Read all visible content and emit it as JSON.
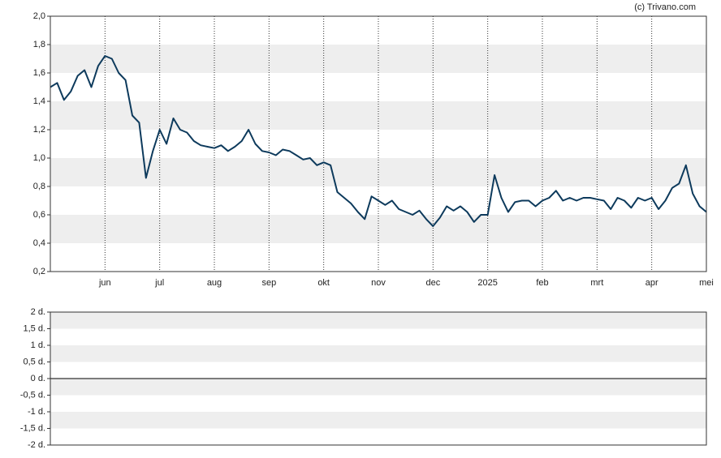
{
  "attribution": "(c) Trivano.com",
  "chart_data": [
    {
      "type": "line",
      "categories": [
        null,
        null,
        null,
        null,
        null,
        null,
        null,
        null,
        "jun",
        null,
        null,
        null,
        null,
        null,
        null,
        null,
        "jul",
        null,
        null,
        null,
        null,
        null,
        null,
        null,
        "aug",
        null,
        null,
        null,
        null,
        null,
        null,
        null,
        "sep",
        null,
        null,
        null,
        null,
        null,
        null,
        null,
        "okt",
        null,
        null,
        null,
        null,
        null,
        null,
        null,
        "nov",
        null,
        null,
        null,
        null,
        null,
        null,
        null,
        "dec",
        null,
        null,
        null,
        null,
        null,
        null,
        null,
        "2025",
        null,
        null,
        null,
        null,
        null,
        null,
        null,
        "feb",
        null,
        null,
        null,
        null,
        null,
        null,
        null,
        "mrt",
        null,
        null,
        null,
        null,
        null,
        null,
        null,
        "apr",
        null,
        null,
        null,
        null,
        null,
        null,
        null,
        "mei"
      ],
      "series": [
        {
          "color": "#0d3a5c",
          "values": [
            1.5,
            1.53,
            1.41,
            1.47,
            1.58,
            1.62,
            1.5,
            1.65,
            1.72,
            1.7,
            1.6,
            1.55,
            1.3,
            1.25,
            0.86,
            1.05,
            1.2,
            1.1,
            1.28,
            1.2,
            1.18,
            1.12,
            1.09,
            1.08,
            1.07,
            1.09,
            1.05,
            1.08,
            1.12,
            1.2,
            1.1,
            1.05,
            1.04,
            1.02,
            1.06,
            1.05,
            1.02,
            0.99,
            1.0,
            0.95,
            0.97,
            0.95,
            0.76,
            0.72,
            0.68,
            0.62,
            0.57,
            0.73,
            0.7,
            0.67,
            0.7,
            0.64,
            0.62,
            0.6,
            0.63,
            0.57,
            0.52,
            0.58,
            0.66,
            0.63,
            0.66,
            0.62,
            0.55,
            0.6,
            0.6,
            0.88,
            0.72,
            0.62,
            0.69,
            0.7,
            0.7,
            0.66,
            0.7,
            0.72,
            0.77,
            0.7,
            0.72,
            0.7,
            0.72,
            0.72,
            0.71,
            0.7,
            0.64,
            0.72,
            0.7,
            0.65,
            0.72,
            0.7,
            0.72,
            0.64,
            0.7,
            0.79,
            0.82,
            0.95,
            0.75,
            0.66,
            0.62
          ]
        }
      ],
      "ylim": [
        0.2,
        2.0
      ],
      "yticks": [
        {
          "value": 0.2,
          "label": "0,2"
        },
        {
          "value": 0.4,
          "label": "0,4"
        },
        {
          "value": 0.6,
          "label": "0,6"
        },
        {
          "value": 0.8,
          "label": "0,8"
        },
        {
          "value": 1.0,
          "label": "1,0"
        },
        {
          "value": 1.2,
          "label": "1,2"
        },
        {
          "value": 1.4,
          "label": "1,4"
        },
        {
          "value": 1.6,
          "label": "1,6"
        },
        {
          "value": 1.8,
          "label": "1,8"
        },
        {
          "value": 2.0,
          "label": "2,0"
        }
      ]
    },
    {
      "type": "bar",
      "ylim": [
        -2,
        2
      ],
      "yticks": [
        {
          "value": -2,
          "label": "-2 d."
        },
        {
          "value": -1.5,
          "label": "-1,5 d."
        },
        {
          "value": -1,
          "label": "-1 d."
        },
        {
          "value": -0.5,
          "label": "-0,5 d."
        },
        {
          "value": 0,
          "label": "0 d."
        },
        {
          "value": 0.5,
          "label": "0,5 d."
        },
        {
          "value": 1,
          "label": "1 d."
        },
        {
          "value": 1.5,
          "label": "1,5 d."
        },
        {
          "value": 2,
          "label": "2 d."
        }
      ]
    }
  ]
}
